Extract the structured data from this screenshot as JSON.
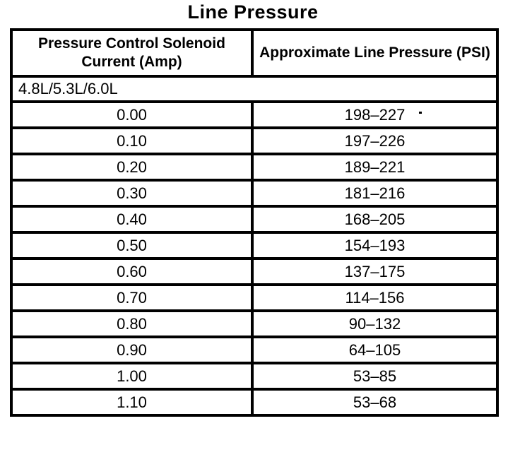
{
  "title": "Line Pressure",
  "table": {
    "headers": {
      "current": "Pressure Control Solenoid Current (Amp)",
      "pressure": "Approximate Line Pressure (PSI)"
    },
    "engine_group": "4.8L/5.3L/6.0L",
    "rows": [
      {
        "amp": "0.00",
        "psi": "198–227"
      },
      {
        "amp": "0.10",
        "psi": "197–226"
      },
      {
        "amp": "0.20",
        "psi": "189–221"
      },
      {
        "amp": "0.30",
        "psi": "181–216"
      },
      {
        "amp": "0.40",
        "psi": "168–205"
      },
      {
        "amp": "0.50",
        "psi": "154–193"
      },
      {
        "amp": "0.60",
        "psi": "137–175"
      },
      {
        "amp": "0.70",
        "psi": "114–156"
      },
      {
        "amp": "0.80",
        "psi": "90–132"
      },
      {
        "amp": "0.90",
        "psi": "64–105"
      },
      {
        "amp": "1.00",
        "psi": "53–85"
      },
      {
        "amp": "1.10",
        "psi": "53–68"
      }
    ]
  },
  "colors": {
    "ink": "#000000",
    "paper": "#ffffff"
  }
}
